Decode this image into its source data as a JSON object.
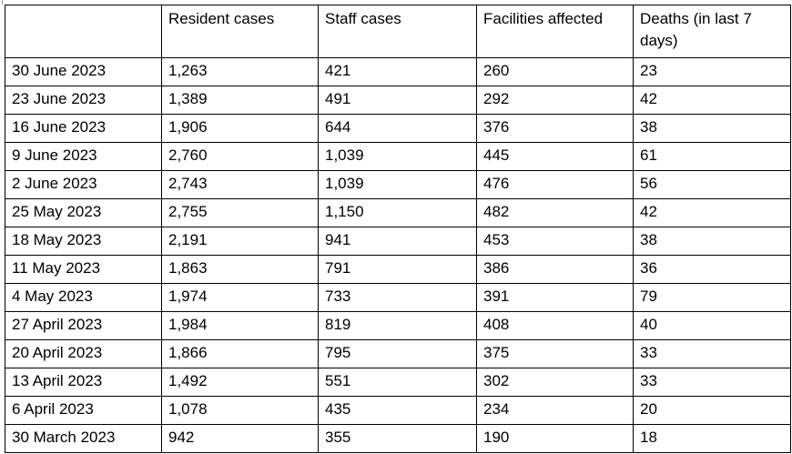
{
  "table": {
    "headers": [
      "",
      "Resident cases",
      "Staff cases",
      "Facilities affected",
      "Deaths (in last 7 days)"
    ],
    "rows": [
      [
        "30 June 2023",
        "1,263",
        "421",
        "260",
        "23"
      ],
      [
        "23 June 2023",
        "1,389",
        "491",
        "292",
        "42"
      ],
      [
        "16 June 2023",
        "1,906",
        "644",
        "376",
        "38"
      ],
      [
        "9 June 2023",
        "2,760",
        "1,039",
        "445",
        "61"
      ],
      [
        "2 June 2023",
        "2,743",
        "1,039",
        "476",
        "56"
      ],
      [
        "25 May 2023",
        "2,755",
        "1,150",
        "482",
        "42"
      ],
      [
        "18 May 2023",
        "2,191",
        "941",
        "453",
        "38"
      ],
      [
        "11 May 2023",
        "1,863",
        "791",
        "386",
        "36"
      ],
      [
        "4 May 2023",
        "1,974",
        "733",
        "391",
        "79"
      ],
      [
        "27 April 2023",
        "1,984",
        "819",
        "408",
        "40"
      ],
      [
        "20 April 2023",
        "1,866",
        "795",
        "375",
        "33"
      ],
      [
        "13 April 2023",
        "1,492",
        "551",
        "302",
        "33"
      ],
      [
        "6 April 2023",
        "1,078",
        "435",
        "234",
        "20"
      ],
      [
        "30 March 2023",
        "942",
        "355",
        "190",
        "18"
      ]
    ]
  }
}
